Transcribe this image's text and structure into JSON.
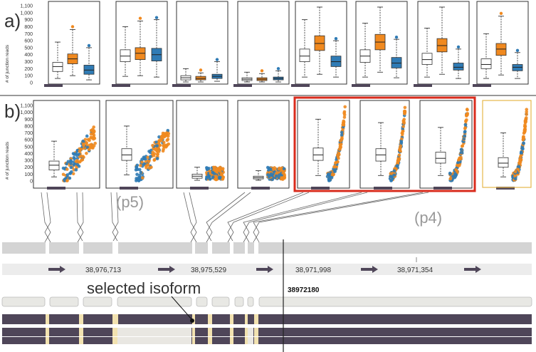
{
  "panels": {
    "a_label": "a)",
    "b_label": "b)",
    "y_axis_label": "# of junction reads",
    "y_ticks": [
      "0",
      "100",
      "200",
      "300",
      "400",
      "500",
      "600",
      "700",
      "800",
      "900",
      "1,000",
      "1,100"
    ]
  },
  "annotations": {
    "p5": "(p5)",
    "p4": "(p4)",
    "selected_isoform": "selected isoform",
    "cursor_position": "38972180"
  },
  "genome_axis": {
    "coordinates": [
      "38,976,713",
      "38,975,529",
      "38,971,998",
      "38,971,354"
    ]
  },
  "colors": {
    "orange": "#f0891f",
    "blue": "#2f7bb5",
    "highlight_red": "#d92b1c",
    "highlight_gold": "#e6b84a",
    "isoform_dark": "#4f4659",
    "exon_gray": "#cfcfcf"
  },
  "chart_data": {
    "type": "box",
    "junctions": 8,
    "ylim": [
      0,
      1100
    ],
    "series": [
      {
        "name": "",
        "color": "#ffffff"
      },
      {
        "name": "",
        "color": "#f0891f"
      },
      {
        "name": "",
        "color": "#2f7bb5"
      }
    ]
  }
}
